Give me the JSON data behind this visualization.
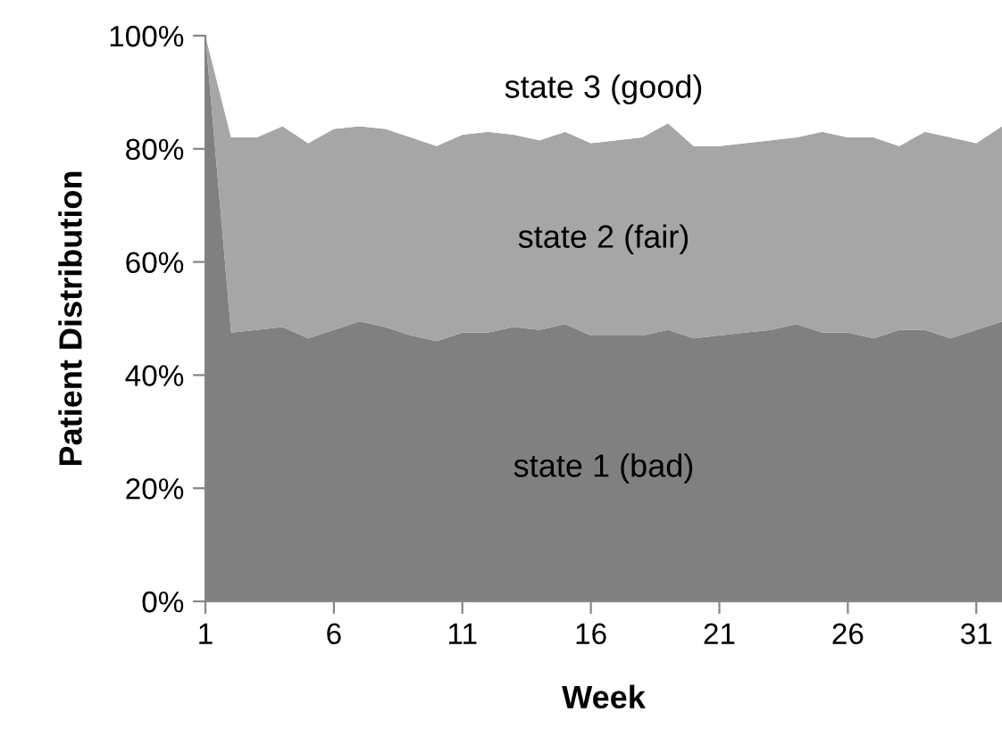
{
  "chart_data": {
    "type": "area",
    "stacked": true,
    "xlabel": "Week",
    "ylabel": "Patient Distribution",
    "x": [
      1,
      2,
      3,
      4,
      5,
      6,
      7,
      8,
      9,
      10,
      11,
      12,
      13,
      14,
      15,
      16,
      17,
      18,
      19,
      20,
      21,
      22,
      23,
      24,
      25,
      26,
      27,
      28,
      29,
      30,
      31,
      32
    ],
    "series": [
      {
        "name": "state 1 (bad)",
        "color": "#808080",
        "values": [
          100,
          47.5,
          48,
          48.5,
          46.5,
          48,
          49.5,
          48.5,
          47,
          46,
          47.5,
          47.5,
          48.5,
          48,
          49,
          47,
          47,
          47,
          48,
          46.5,
          47,
          47.5,
          48,
          49,
          47.5,
          47.5,
          46.5,
          48,
          48,
          46.5,
          48,
          49.5
        ]
      },
      {
        "name": "state 2 (fair)",
        "color": "#a6a6a6",
        "values": [
          0,
          34.5,
          34,
          35.5,
          34.5,
          35.5,
          34.5,
          35,
          35,
          34.5,
          35,
          35.5,
          34,
          33.5,
          34,
          34,
          34.5,
          35,
          36.5,
          34,
          33.5,
          33.5,
          33.5,
          33,
          35.5,
          34.5,
          35.5,
          32.5,
          35,
          35.5,
          33,
          34.5
        ]
      },
      {
        "name": "state 3 (good)",
        "color": "#ffffff",
        "values": [
          0,
          18,
          18,
          16,
          19,
          16.5,
          16,
          16.5,
          18,
          19.5,
          17.5,
          17,
          17.5,
          18.5,
          17,
          19,
          18.5,
          18,
          15.5,
          19.5,
          19.5,
          19,
          18.5,
          18,
          17,
          18,
          18,
          19.5,
          17,
          18,
          19,
          16
        ]
      }
    ],
    "xlim": [
      1,
      32
    ],
    "xticks": [
      1,
      6,
      11,
      16,
      21,
      26,
      31
    ],
    "ylim": [
      0,
      100
    ],
    "yticks": [
      {
        "value": 0,
        "label": "0%"
      },
      {
        "value": 20,
        "label": "20%"
      },
      {
        "value": 40,
        "label": "40%"
      },
      {
        "value": 60,
        "label": "60%"
      },
      {
        "value": 80,
        "label": "80%"
      },
      {
        "value": 100,
        "label": "100%"
      }
    ],
    "grid": false,
    "legend": false
  }
}
